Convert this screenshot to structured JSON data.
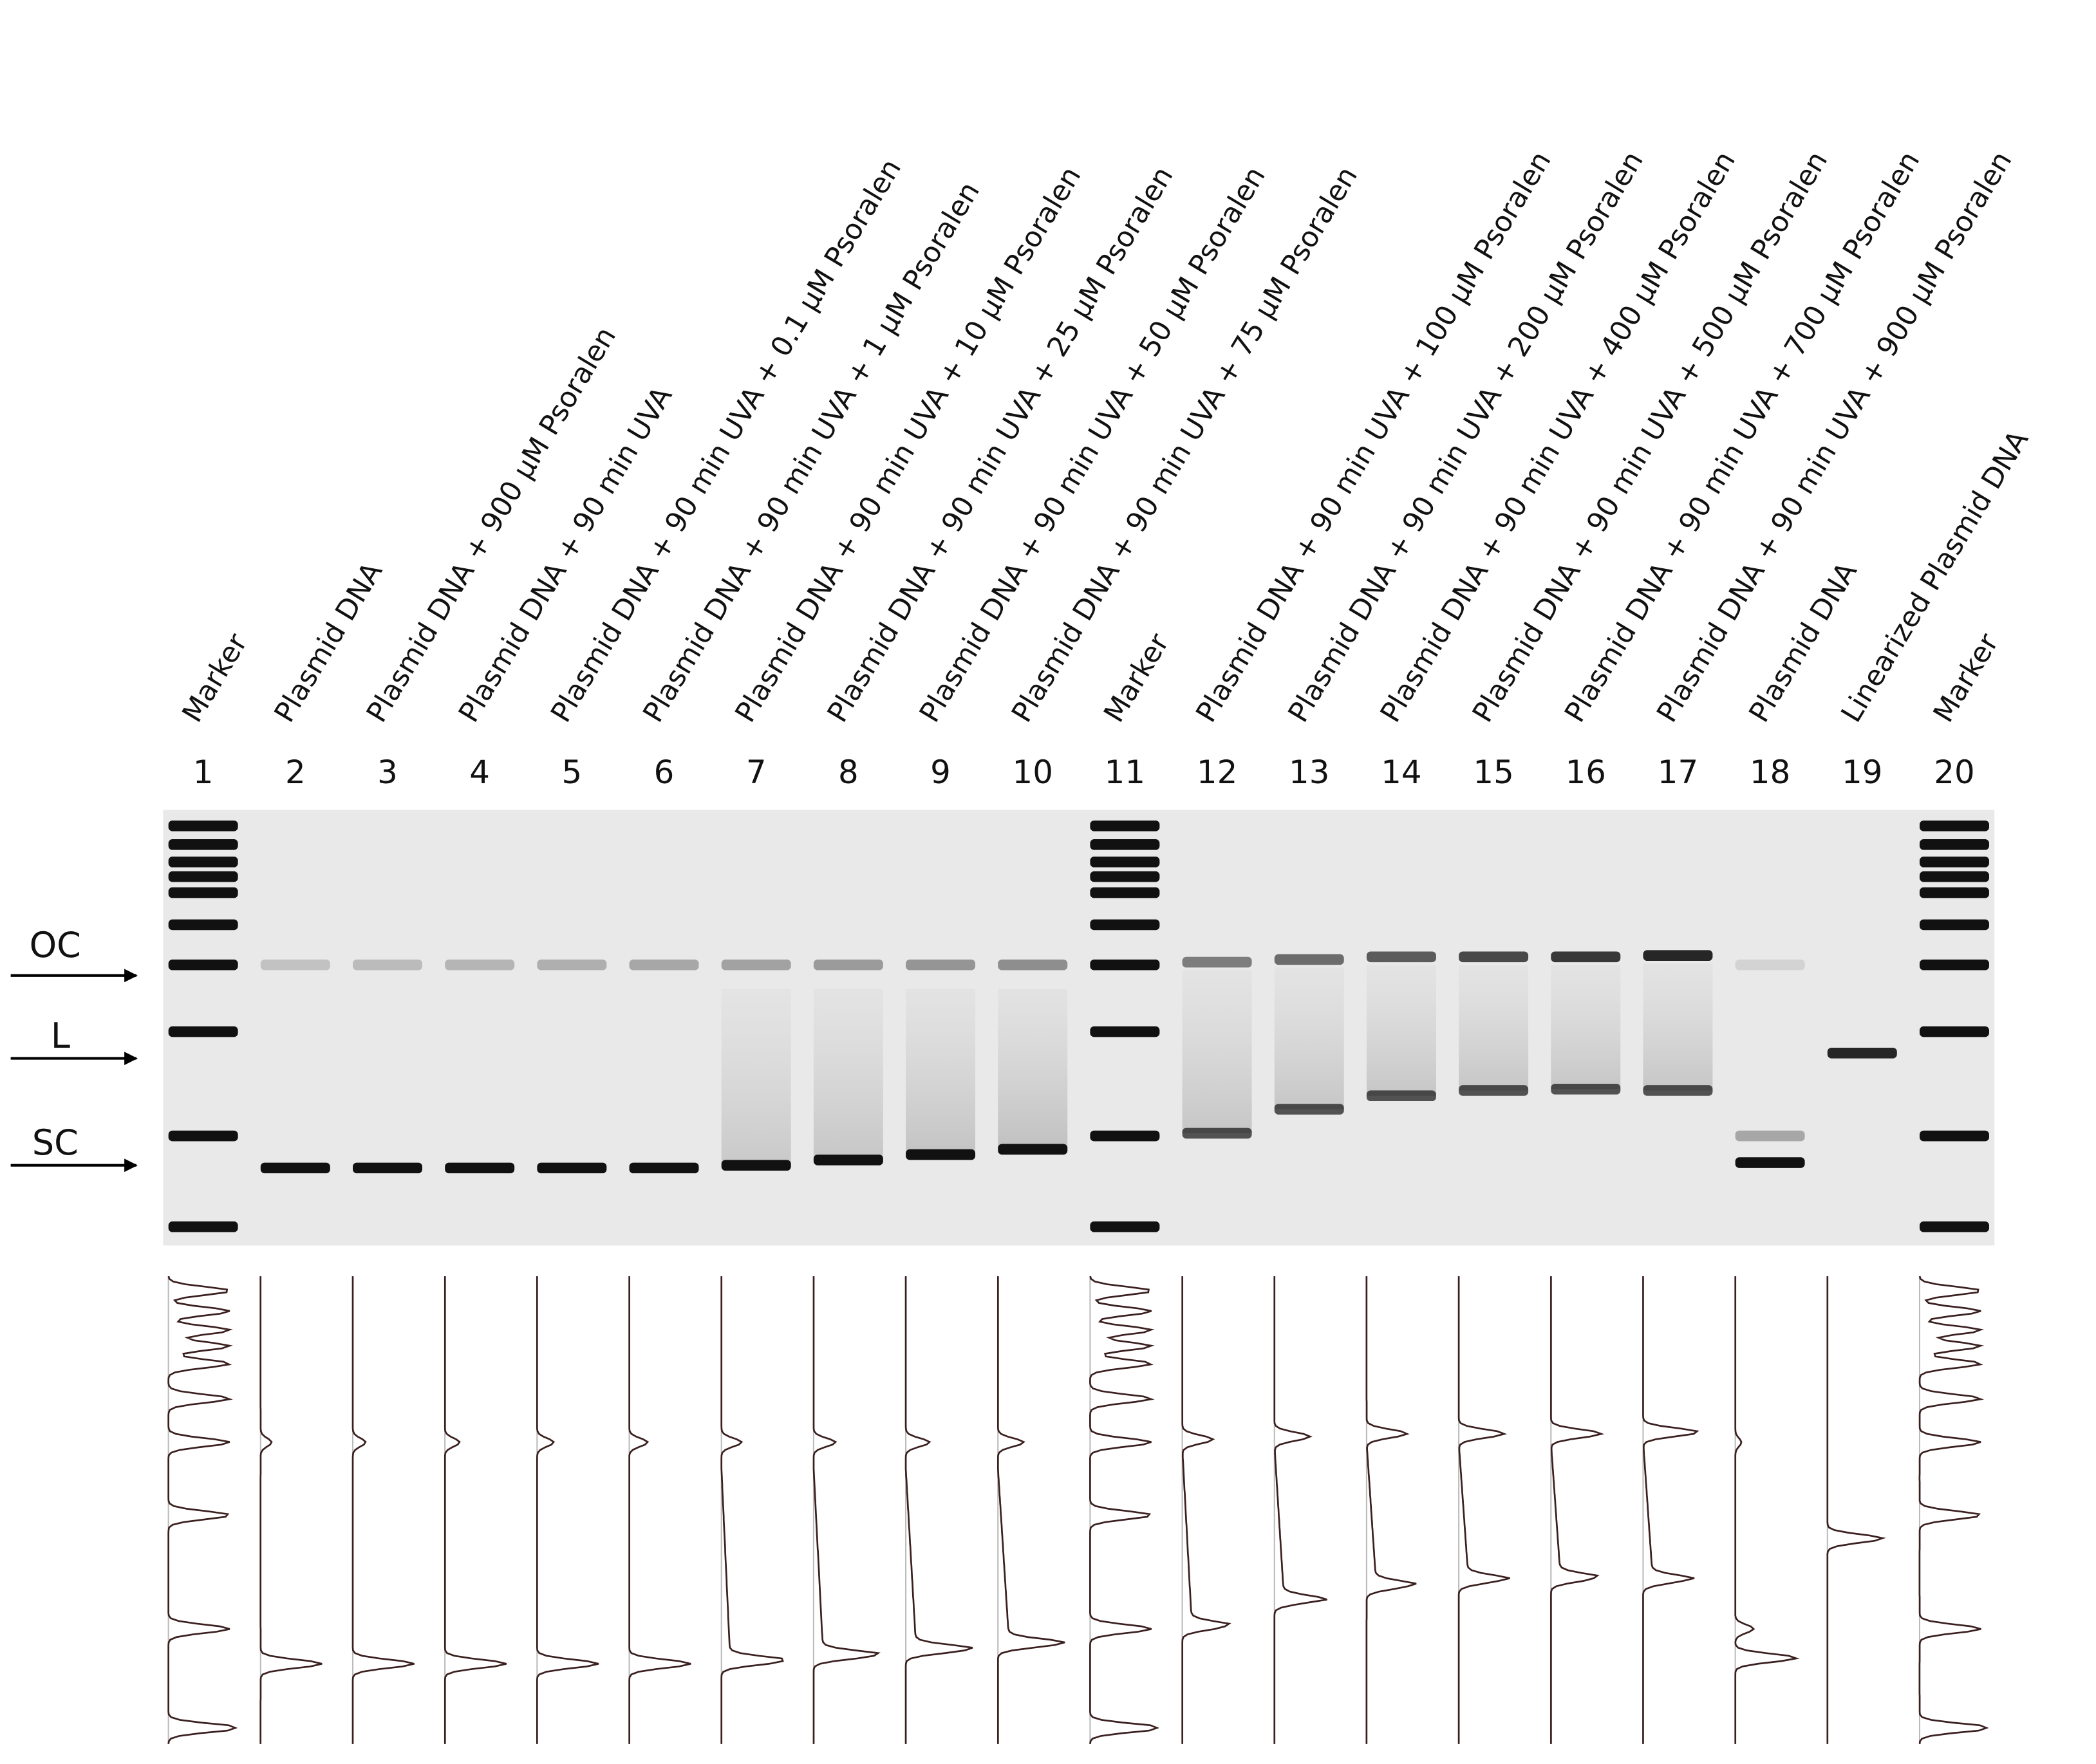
{
  "lanes": [
    {
      "number": "1",
      "label": "Marker"
    },
    {
      "number": "2",
      "label": "Plasmid DNA"
    },
    {
      "number": "3",
      "label": "Plasmid DNA + 900 μM Psoralen"
    },
    {
      "number": "4",
      "label": "Plasmid DNA + 90 min UVA"
    },
    {
      "number": "5",
      "label": "Plasmid DNA + 90 min UVA + 0.1 μM Psoralen"
    },
    {
      "number": "6",
      "label": "Plasmid DNA + 90 min UVA + 1 μM Psoralen"
    },
    {
      "number": "7",
      "label": "Plasmid DNA + 90 min UVA + 10 μM Psoralen"
    },
    {
      "number": "8",
      "label": "Plasmid DNA + 90 min UVA + 25 μM Psoralen"
    },
    {
      "number": "9",
      "label": "Plasmid DNA + 90 min UVA + 50 μM Psoralen"
    },
    {
      "number": "10",
      "label": "Plasmid DNA + 90 min UVA + 75 μM Psoralen"
    },
    {
      "number": "11",
      "label": "Marker"
    },
    {
      "number": "12",
      "label": "Plasmid DNA + 90 min UVA + 100 μM Psoralen"
    },
    {
      "number": "13",
      "label": "Plasmid DNA + 90 min UVA + 200 μM Psoralen"
    },
    {
      "number": "14",
      "label": "Plasmid DNA + 90 min UVA + 400 μM Psoralen"
    },
    {
      "number": "15",
      "label": "Plasmid DNA + 90 min UVA + 500 μM Psoralen"
    },
    {
      "number": "16",
      "label": "Plasmid DNA + 90 min UVA + 700 μM Psoralen"
    },
    {
      "number": "17",
      "label": "Plasmid DNA + 90 min UVA + 900 μM Psoralen"
    },
    {
      "number": "18",
      "label": "Plasmid DNA"
    },
    {
      "number": "19",
      "label": "Linearized Plasmid DNA"
    },
    {
      "number": "20",
      "label": "Marker"
    }
  ],
  "markers": [
    "OC",
    "L",
    "SC"
  ]
}
